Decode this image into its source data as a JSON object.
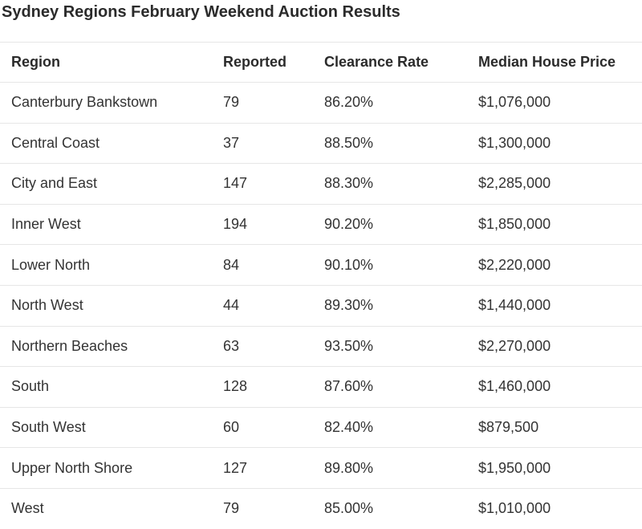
{
  "title": "Sydney Regions February Weekend Auction Results",
  "table": {
    "headers": {
      "region": "Region",
      "reported": "Reported",
      "clearance": "Clearance Rate",
      "price": "Median House Price"
    },
    "rows": [
      {
        "region": "Canterbury Bankstown",
        "reported": "79",
        "clearance": "86.20%",
        "price": "$1,076,000"
      },
      {
        "region": "Central Coast",
        "reported": "37",
        "clearance": "88.50%",
        "price": "$1,300,000"
      },
      {
        "region": "City and East",
        "reported": "147",
        "clearance": "88.30%",
        "price": "$2,285,000"
      },
      {
        "region": "Inner West",
        "reported": "194",
        "clearance": "90.20%",
        "price": "$1,850,000"
      },
      {
        "region": "Lower North",
        "reported": "84",
        "clearance": "90.10%",
        "price": "$2,220,000"
      },
      {
        "region": "North West",
        "reported": "44",
        "clearance": "89.30%",
        "price": "$1,440,000"
      },
      {
        "region": "Northern Beaches",
        "reported": "63",
        "clearance": "93.50%",
        "price": "$2,270,000"
      },
      {
        "region": "South",
        "reported": "128",
        "clearance": "87.60%",
        "price": "$1,460,000"
      },
      {
        "region": "South West",
        "reported": "60",
        "clearance": "82.40%",
        "price": "$879,500"
      },
      {
        "region": "Upper North Shore",
        "reported": "127",
        "clearance": "89.80%",
        "price": "$1,950,000"
      },
      {
        "region": "West",
        "reported": "79",
        "clearance": "85.00%",
        "price": "$1,010,000"
      }
    ]
  }
}
